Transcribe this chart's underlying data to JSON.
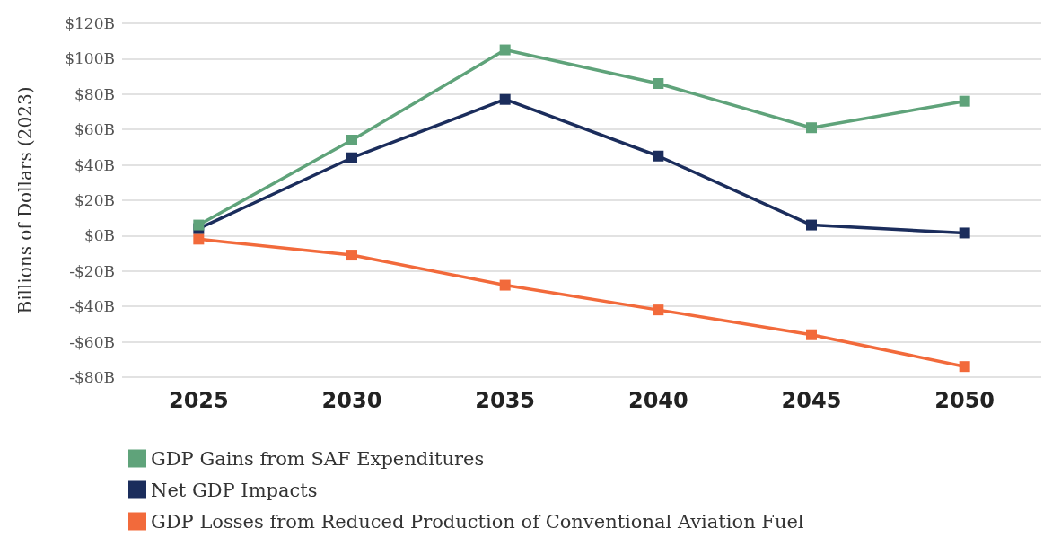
{
  "chart_data": {
    "type": "line",
    "ylabel": "Billions of Dollars (2023)",
    "categories": [
      "2025",
      "2030",
      "2035",
      "2040",
      "2045",
      "2050"
    ],
    "series": [
      {
        "name": "GDP Gains from SAF Expenditures",
        "color": "#5fa37a",
        "values": [
          6,
          54,
          105,
          86,
          61,
          76
        ]
      },
      {
        "name": "Net GDP Impacts",
        "color": "#1b2d5c",
        "values": [
          4,
          44,
          77,
          45,
          6,
          1.5
        ]
      },
      {
        "name": "GDP Losses from Reduced Production of Conventional Aviation Fuel",
        "color": "#f26a3b",
        "values": [
          -2,
          -11,
          -28,
          -42,
          -56,
          -74
        ]
      }
    ],
    "ylim": [
      -80,
      120
    ],
    "yticks": [
      {
        "value": -80,
        "label": "-$80B"
      },
      {
        "value": -60,
        "label": "-$60B"
      },
      {
        "value": -40,
        "label": "-$40B"
      },
      {
        "value": -20,
        "label": "-$20B"
      },
      {
        "value": 0,
        "label": "$0B"
      },
      {
        "value": 20,
        "label": "$20B"
      },
      {
        "value": 40,
        "label": "$40B"
      },
      {
        "value": 60,
        "label": "$60B"
      },
      {
        "value": 80,
        "label": "$80B"
      },
      {
        "value": 100,
        "label": "$100B"
      },
      {
        "value": 120,
        "label": "$120B"
      }
    ],
    "grid": "y",
    "legend": "bottom left",
    "marker": "square",
    "line_style": "solid"
  }
}
